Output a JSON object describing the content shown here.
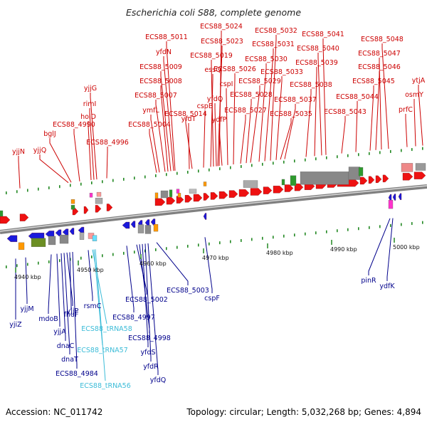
{
  "title": "Escherichia coli S88, complete genome",
  "footer": {
    "accession": "Accession: NC_011742",
    "summary": "Topology: circular; Length: 5,032,268 bp; Genes: 4,894"
  },
  "colors": {
    "top_labels": "#cc0000",
    "bottom_labels": "#00008b",
    "rna_labels": "#3cbcd8",
    "backbone": "#808080",
    "forward_gene": "#ee1111",
    "reverse_gene": "#1a1adc",
    "tick": "#228822"
  },
  "scale_labels": [
    "4940 kbp",
    "4950 kbp",
    "4960 kbp",
    "4970 kbp",
    "4980 kbp",
    "4990 kbp",
    "5000 kbp"
  ],
  "top_labels": [
    "yjjN",
    "yjjQ",
    "bglJ",
    "ECS88_4990",
    "holD",
    "rimI",
    "yjjG",
    "ECS88_4996",
    "ECS88_5004",
    "ymfL",
    "ECS88_5007",
    "ECS88_5008",
    "ECS88_5009",
    "yfdN",
    "ECS88_5011",
    "yfdT",
    "ECS88_5014",
    "cspB",
    "essQ",
    "ECS88_5019",
    "ECS88_5023",
    "ECS88_5024",
    "yfdQ",
    "ydfP",
    "cspI",
    "ECS88_5026",
    "ECS88_5027",
    "ECS88_5028",
    "ECS88_5029",
    "ECS88_5030",
    "ECS88_5031",
    "ECS88_5032",
    "ECS88_5033",
    "ECS88_5035",
    "ECS88_5037",
    "ECS88_5038",
    "ECS88_5039",
    "ECS88_5040",
    "ECS88_5041",
    "ECS88_5043",
    "ECS88_5044",
    "ECS88_5045",
    "ECS88_5046",
    "ECS88_5047",
    "ECS88_5048",
    "prfC",
    "osmY",
    "ytjA"
  ],
  "bottom_labels": [
    "yjiZ",
    "yjjM",
    "mdoB",
    "yjjA",
    "dnaC",
    "dnaT",
    "yjjP",
    "fhuF",
    "rsmC",
    "ECS88_4984",
    "ECS88_4997",
    "ECS88_5002",
    "ECS88_4998",
    "yfdS",
    "yfdR",
    "yfdQ",
    "ECS88_5003",
    "cspF",
    "pinR",
    "ydfK"
  ],
  "rna_labels": [
    "ECS88_tRNA58",
    "ECS88_tRNA57",
    "ECS88_tRNA56"
  ]
}
